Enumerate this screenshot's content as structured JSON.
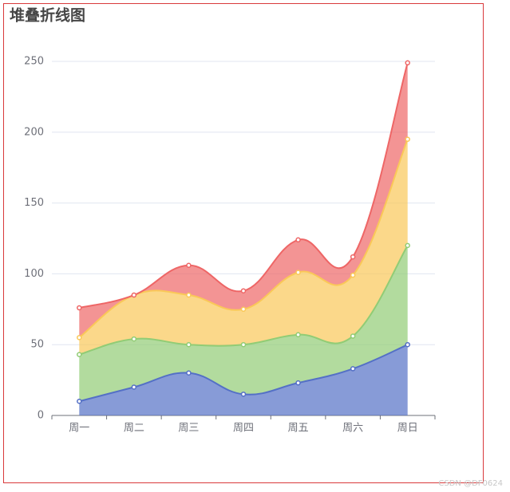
{
  "chart_data": {
    "type": "stacked-area",
    "title": "堆叠折线图",
    "categories": [
      "周一",
      "周二",
      "周三",
      "周四",
      "周五",
      "周六",
      "周日"
    ],
    "series": [
      {
        "color": "#5470c6",
        "values": [
          10,
          20,
          30,
          15,
          23,
          33,
          50
        ]
      },
      {
        "color": "#91cc75",
        "values": [
          33,
          34,
          20,
          35,
          34,
          23,
          70
        ]
      },
      {
        "color": "#fac858",
        "values": [
          12,
          31,
          35,
          25,
          44,
          43,
          75
        ]
      },
      {
        "color": "#ee6666",
        "values": [
          21,
          0,
          21,
          13,
          23,
          13,
          54
        ]
      }
    ],
    "ylim": [
      0,
      250
    ],
    "yticks": [
      0,
      50,
      100,
      150,
      200,
      250
    ],
    "grid": true,
    "smooth": true,
    "watermark": "CSDN @DF0624"
  }
}
